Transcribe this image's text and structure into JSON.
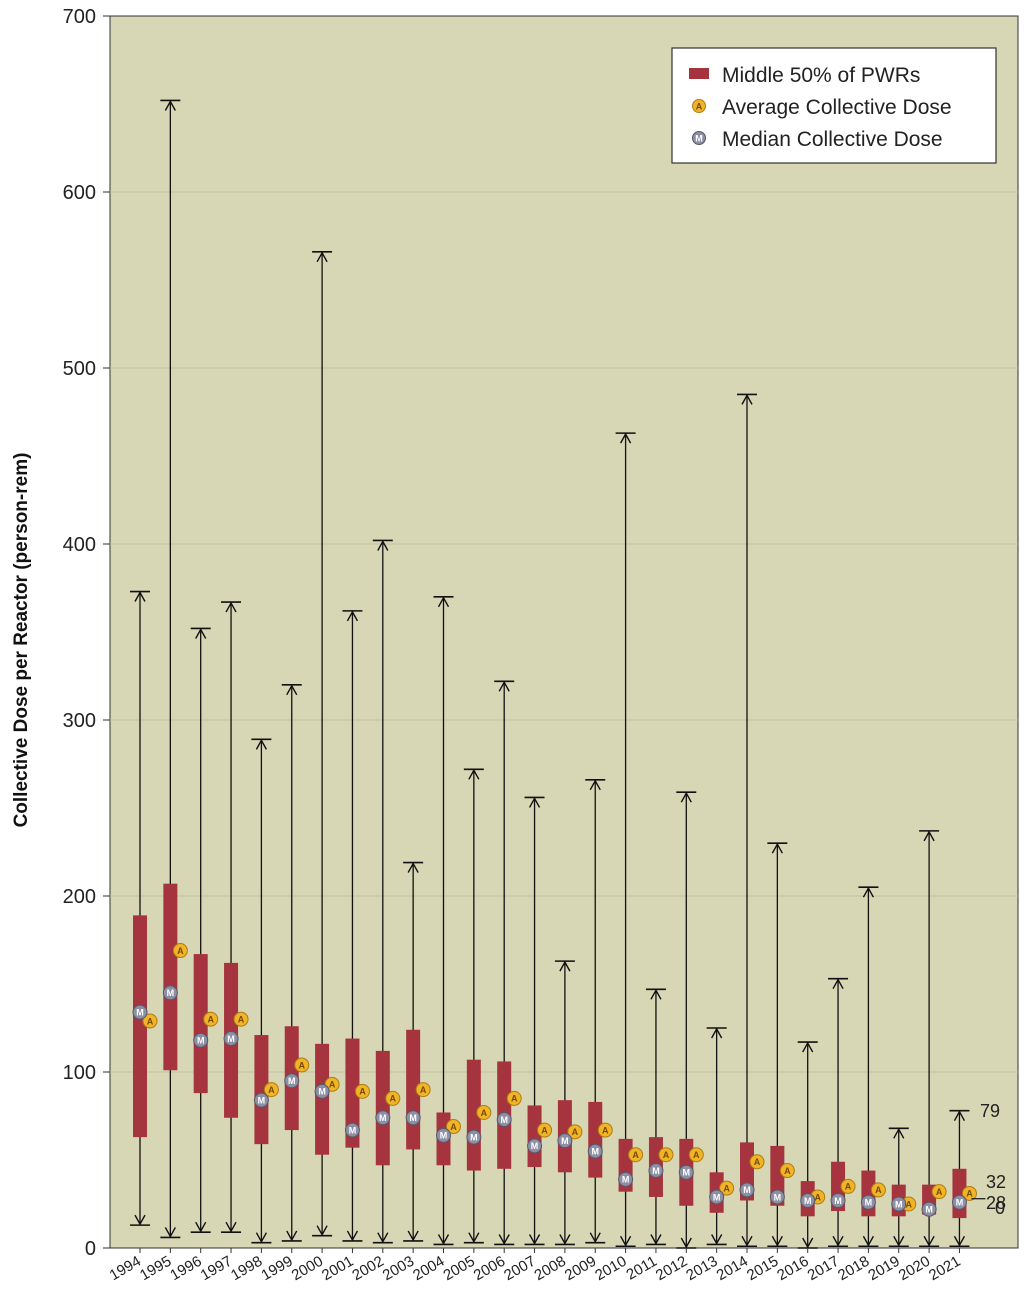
{
  "chart_data": {
    "type": "box",
    "ylabel": "Collective Dose per Reactor (person-rem)",
    "ylim": [
      0,
      700
    ],
    "yticks": [
      0,
      100,
      200,
      300,
      400,
      500,
      600,
      700
    ],
    "grid": true,
    "legend_position": "top-right",
    "legend": [
      {
        "name": "Middle 50% of PWRs",
        "symbol": "bar"
      },
      {
        "name": "Average Collective Dose",
        "symbol": "circle",
        "letter": "A"
      },
      {
        "name": "Median Collective Dose",
        "symbol": "circle",
        "letter": "M"
      }
    ],
    "colors": {
      "plot_bg": "#d7d6b5",
      "box": "#a6343f",
      "average": "#f0b428",
      "median": "#8d8fa5",
      "grid": "#c2c1a0"
    },
    "years": [
      "1994",
      "1995",
      "1996",
      "1997",
      "1998",
      "1999",
      "2000",
      "2001",
      "2002",
      "2003",
      "2004",
      "2005",
      "2006",
      "2007",
      "2008",
      "2009",
      "2010",
      "2011",
      "2012",
      "2013",
      "2014",
      "2015",
      "2016",
      "2017",
      "2018",
      "2019",
      "2020",
      "2021"
    ],
    "max": [
      373,
      652,
      352,
      367,
      289,
      320,
      566,
      362,
      402,
      219,
      370,
      272,
      322,
      256,
      163,
      266,
      463,
      147,
      259,
      125,
      485,
      230,
      117,
      153,
      205,
      68,
      237,
      78
    ],
    "min": [
      13,
      6,
      9,
      9,
      3,
      4,
      7,
      4,
      3,
      4,
      2,
      3,
      2,
      2,
      2,
      3,
      1,
      2,
      0,
      2,
      1,
      1,
      0,
      1,
      1,
      1,
      1,
      1
    ],
    "q1": [
      63,
      101,
      88,
      74,
      59,
      67,
      53,
      57,
      47,
      56,
      47,
      44,
      45,
      46,
      43,
      40,
      32,
      29,
      24,
      20,
      27,
      24,
      18,
      21,
      18,
      18,
      19,
      17
    ],
    "q3": [
      189,
      207,
      167,
      162,
      121,
      126,
      116,
      119,
      112,
      124,
      77,
      107,
      106,
      81,
      84,
      83,
      62,
      63,
      62,
      43,
      60,
      58,
      38,
      49,
      44,
      36,
      36,
      45
    ],
    "median": [
      134,
      145,
      118,
      119,
      84,
      95,
      89,
      67,
      74,
      74,
      64,
      63,
      73,
      58,
      61,
      55,
      39,
      44,
      43,
      29,
      33,
      29,
      27,
      27,
      26,
      25,
      22,
      26
    ],
    "average": [
      129,
      169,
      130,
      130,
      90,
      104,
      93,
      89,
      85,
      90,
      69,
      77,
      85,
      67,
      66,
      67,
      53,
      53,
      53,
      34,
      49,
      44,
      29,
      35,
      33,
      25,
      32,
      31
    ],
    "end_labels": [
      "79",
      "32",
      "28",
      "0"
    ]
  }
}
